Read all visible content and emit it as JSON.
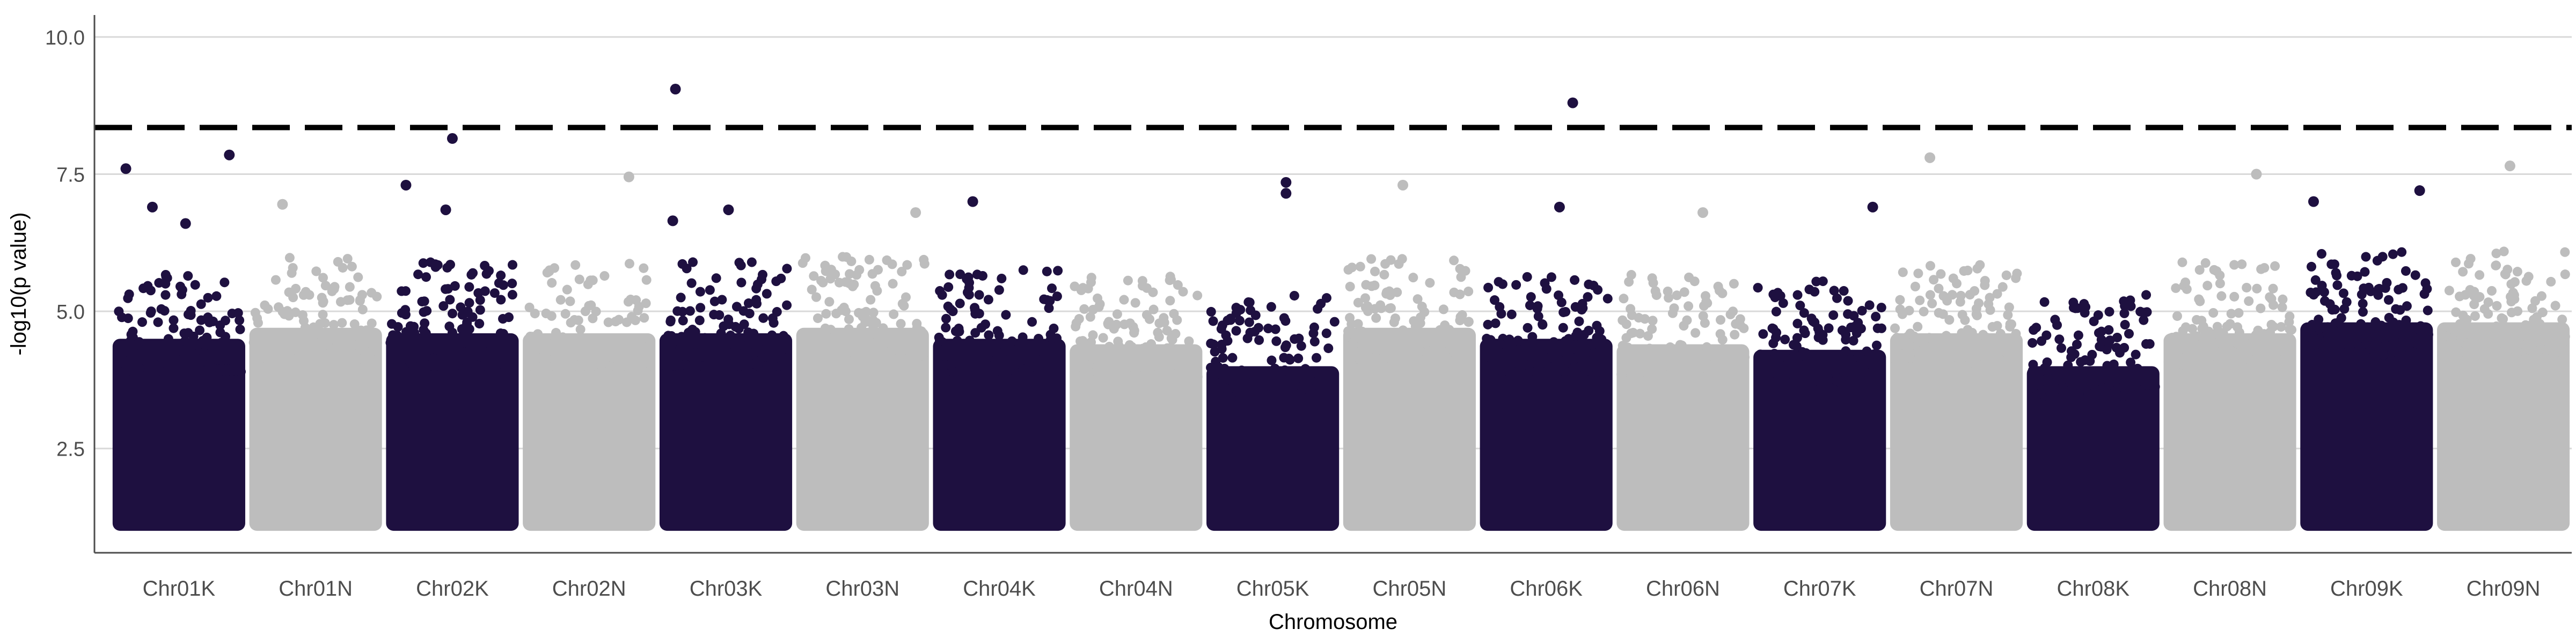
{
  "chart_data": {
    "type": "scatter",
    "subtype": "manhattan",
    "xlabel": "Chromosome",
    "ylabel": "-log10(p value)",
    "ylim": [
      0.6,
      10.4
    ],
    "yticks": [
      "2.5",
      "5.0",
      "7.5",
      "10.0"
    ],
    "ytick_values": [
      2.5,
      5.0,
      7.5,
      10.0
    ],
    "grid": "horizontal major lines",
    "threshold": 8.35,
    "threshold_style": "dashed black line",
    "colors": {
      "odd": "#1e1040",
      "even": "#bdbdbd",
      "threshold": "#000000",
      "grid": "#d9d9d9"
    },
    "categories": [
      "Chr01K",
      "Chr01N",
      "Chr02K",
      "Chr02N",
      "Chr03K",
      "Chr03N",
      "Chr04K",
      "Chr04N",
      "Chr05K",
      "Chr05N",
      "Chr06K",
      "Chr06N",
      "Chr07K",
      "Chr07N",
      "Chr08K",
      "Chr08N",
      "Chr09K",
      "Chr09N"
    ],
    "bulk_top": [
      4.5,
      4.7,
      4.6,
      4.6,
      4.6,
      4.7,
      4.5,
      4.4,
      4.0,
      4.7,
      4.5,
      4.4,
      4.3,
      4.6,
      4.0,
      4.6,
      4.8,
      4.8
    ],
    "peak_points": [
      {
        "chr": "Chr01K",
        "pos": 0.1,
        "p": 7.6
      },
      {
        "chr": "Chr01K",
        "pos": 0.3,
        "p": 6.9
      },
      {
        "chr": "Chr01K",
        "pos": 0.55,
        "p": 6.6
      },
      {
        "chr": "Chr01K",
        "pos": 0.88,
        "p": 7.85
      },
      {
        "chr": "Chr01N",
        "pos": 0.25,
        "p": 6.95
      },
      {
        "chr": "Chr02K",
        "pos": 0.15,
        "p": 7.3
      },
      {
        "chr": "Chr02K",
        "pos": 0.5,
        "p": 8.15
      },
      {
        "chr": "Chr02K",
        "pos": 0.45,
        "p": 6.85
      },
      {
        "chr": "Chr02N",
        "pos": 0.8,
        "p": 7.45
      },
      {
        "chr": "Chr03K",
        "pos": 0.1,
        "p": 6.65
      },
      {
        "chr": "Chr03K",
        "pos": 0.12,
        "p": 9.05
      },
      {
        "chr": "Chr03K",
        "pos": 0.52,
        "p": 6.85
      },
      {
        "chr": "Chr03N",
        "pos": 0.9,
        "p": 6.8
      },
      {
        "chr": "Chr04K",
        "pos": 0.3,
        "p": 7.0
      },
      {
        "chr": "Chr05K",
        "pos": 0.6,
        "p": 7.35
      },
      {
        "chr": "Chr05K",
        "pos": 0.6,
        "p": 7.15
      },
      {
        "chr": "Chr05N",
        "pos": 0.45,
        "p": 7.3
      },
      {
        "chr": "Chr06K",
        "pos": 0.6,
        "p": 6.9
      },
      {
        "chr": "Chr06K",
        "pos": 0.7,
        "p": 8.8
      },
      {
        "chr": "Chr06N",
        "pos": 0.65,
        "p": 6.8
      },
      {
        "chr": "Chr07K",
        "pos": 0.9,
        "p": 6.9
      },
      {
        "chr": "Chr07N",
        "pos": 0.3,
        "p": 7.8
      },
      {
        "chr": "Chr08N",
        "pos": 0.7,
        "p": 7.5
      },
      {
        "chr": "Chr09K",
        "pos": 0.1,
        "p": 7.0
      },
      {
        "chr": "Chr09K",
        "pos": 0.9,
        "p": 7.2
      },
      {
        "chr": "Chr09N",
        "pos": 0.55,
        "p": 7.65
      }
    ]
  }
}
